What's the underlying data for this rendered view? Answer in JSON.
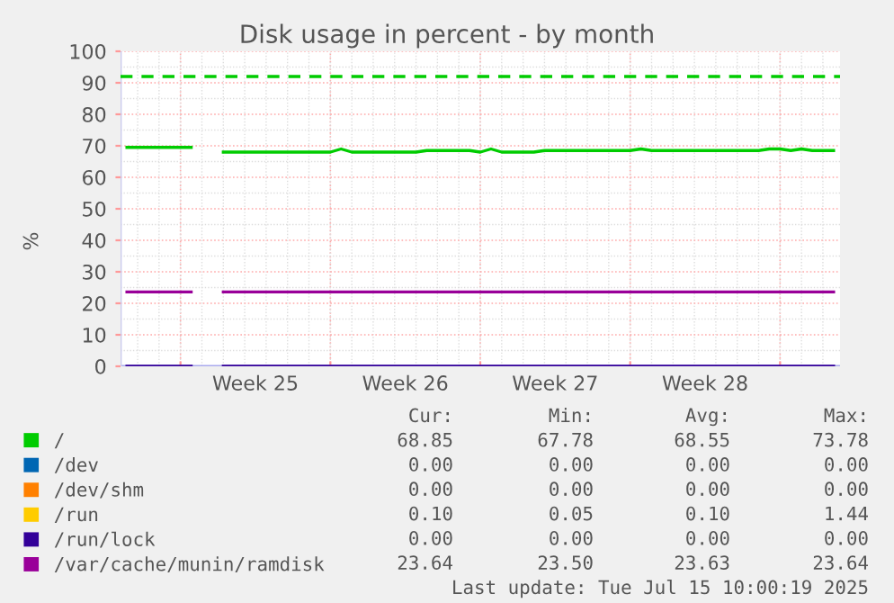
{
  "chart_data": {
    "type": "line",
    "title": "Disk usage in percent - by month",
    "ylabel": "%",
    "categories": [
      null,
      null,
      null,
      null,
      null,
      null,
      null,
      null,
      null,
      null,
      null,
      null,
      "Week 25",
      null,
      null,
      null,
      null,
      null,
      null,
      null,
      null,
      null,
      null,
      null,
      null,
      null,
      "Week 26",
      null,
      null,
      null,
      null,
      null,
      null,
      null,
      null,
      null,
      null,
      null,
      null,
      null,
      "Week 27",
      null,
      null,
      null,
      null,
      null,
      null,
      null,
      null,
      null,
      null,
      null,
      null,
      null,
      "Week 28",
      null,
      null,
      null,
      null,
      null,
      null,
      null,
      null,
      null,
      null,
      null,
      null
    ],
    "series": [
      {
        "name": "/",
        "color": "#00cc00",
        "values": [
          69.5,
          69.5,
          69.5,
          69.5,
          69.5,
          69.5,
          69.5,
          null,
          null,
          68.0,
          68.0,
          68.0,
          68.0,
          68.0,
          68.0,
          68.0,
          68.0,
          68.0,
          68.0,
          68.0,
          69.0,
          68.0,
          68.0,
          68.0,
          68.0,
          68.0,
          68.0,
          68.0,
          68.5,
          68.5,
          68.5,
          68.5,
          68.5,
          68.0,
          69.0,
          68.0,
          68.0,
          68.0,
          68.0,
          68.5,
          68.5,
          68.5,
          68.5,
          68.5,
          68.5,
          68.5,
          68.5,
          68.5,
          69.0,
          68.5,
          68.5,
          68.5,
          68.5,
          68.5,
          68.5,
          68.5,
          68.5,
          68.5,
          68.5,
          68.5,
          69.0,
          69.0,
          68.5,
          69.0,
          68.5,
          68.5,
          68.5
        ]
      },
      {
        "name": "/dev",
        "color": "#0066b3",
        "values": [
          null,
          null,
          null,
          null,
          null,
          null,
          null,
          null,
          null,
          null,
          null,
          null,
          null,
          null,
          null,
          null,
          null,
          null,
          null,
          null,
          null,
          null,
          null,
          null,
          null,
          null,
          null,
          null,
          null,
          null,
          null,
          null,
          null,
          null,
          null,
          null,
          null,
          null,
          null,
          null,
          null,
          null,
          null,
          null,
          null,
          null,
          null,
          null,
          null,
          null,
          null,
          null,
          null,
          null,
          null,
          null,
          null,
          null,
          null,
          null,
          null,
          null,
          null,
          null,
          null,
          null,
          null
        ]
      },
      {
        "name": "/dev/shm",
        "color": "#ff8000",
        "values": [
          null,
          null,
          null,
          null,
          null,
          null,
          null,
          null,
          null,
          null,
          null,
          null,
          null,
          null,
          null,
          null,
          null,
          null,
          null,
          null,
          null,
          null,
          null,
          null,
          null,
          null,
          null,
          null,
          null,
          null,
          null,
          null,
          null,
          null,
          null,
          null,
          null,
          null,
          null,
          null,
          null,
          null,
          null,
          null,
          null,
          null,
          null,
          null,
          null,
          null,
          null,
          null,
          null,
          null,
          null,
          null,
          null,
          null,
          null,
          null,
          null,
          null,
          null,
          null,
          null,
          null,
          null
        ]
      },
      {
        "name": "/run",
        "color": "#ffcc00",
        "values": [
          null,
          null,
          null,
          null,
          null,
          null,
          null,
          null,
          null,
          null,
          null,
          null,
          null,
          null,
          null,
          null,
          null,
          null,
          null,
          null,
          null,
          null,
          null,
          null,
          null,
          null,
          null,
          null,
          null,
          null,
          null,
          null,
          null,
          null,
          null,
          null,
          null,
          null,
          null,
          null,
          null,
          null,
          null,
          null,
          null,
          null,
          null,
          null,
          null,
          null,
          null,
          null,
          null,
          null,
          null,
          null,
          null,
          null,
          null,
          null,
          null,
          null,
          null,
          null,
          null,
          null,
          null
        ]
      },
      {
        "name": "/run/lock",
        "color": "#330099",
        "values": [
          0,
          0,
          0,
          0,
          0,
          0,
          0,
          null,
          null,
          0,
          0,
          0,
          0,
          0,
          0,
          0,
          0,
          0,
          0,
          0,
          0,
          0,
          0,
          0,
          0,
          0,
          0,
          0,
          0,
          0,
          0,
          0,
          0,
          0,
          0,
          0,
          0,
          0,
          0,
          0,
          0,
          0,
          0,
          0,
          0,
          0,
          0,
          0,
          0,
          0,
          0,
          0,
          0,
          0,
          0,
          0,
          0,
          0,
          0,
          0,
          0,
          0,
          0,
          0,
          0,
          0,
          0
        ]
      },
      {
        "name": "/var/cache/munin/ramdisk",
        "color": "#990099",
        "values": [
          23.6,
          23.6,
          23.6,
          23.6,
          23.6,
          23.6,
          23.6,
          null,
          null,
          23.6,
          23.6,
          23.6,
          23.6,
          23.6,
          23.6,
          23.6,
          23.6,
          23.6,
          23.6,
          23.6,
          23.6,
          23.6,
          23.6,
          23.6,
          23.6,
          23.6,
          23.6,
          23.6,
          23.6,
          23.6,
          23.6,
          23.6,
          23.6,
          23.6,
          23.6,
          23.6,
          23.6,
          23.6,
          23.6,
          23.6,
          23.6,
          23.6,
          23.6,
          23.6,
          23.6,
          23.6,
          23.6,
          23.6,
          23.6,
          23.6,
          23.6,
          23.6,
          23.6,
          23.6,
          23.6,
          23.6,
          23.6,
          23.6,
          23.6,
          23.6,
          23.6,
          23.6,
          23.6,
          23.6,
          23.6,
          23.6,
          23.6
        ]
      }
    ],
    "ylim": [
      0,
      100
    ],
    "yticks": [
      0,
      10,
      20,
      30,
      40,
      50,
      60,
      70,
      80,
      90,
      100
    ],
    "ref_lines": [
      {
        "axis": "y",
        "value": 92,
        "label": null,
        "color": "#00cc00",
        "line_style": "dashed"
      }
    ],
    "grid": true,
    "legend": "bottom left",
    "line_style": "solid",
    "marker": "none",
    "annotations": [
      "Cur: Min: Avg: Max:",
      "68.85 67.78 68.55 73.78",
      "0.00 0.00 0.00 0.00",
      "0.00 0.00 0.00 0.00",
      "0.10 0.05 0.10 1.44",
      "0.00 0.00 0.00 0.00",
      "23.64 23.50 23.63 23.64",
      "Last update: Tue Jul 15 10:00:19 2025"
    ]
  }
}
